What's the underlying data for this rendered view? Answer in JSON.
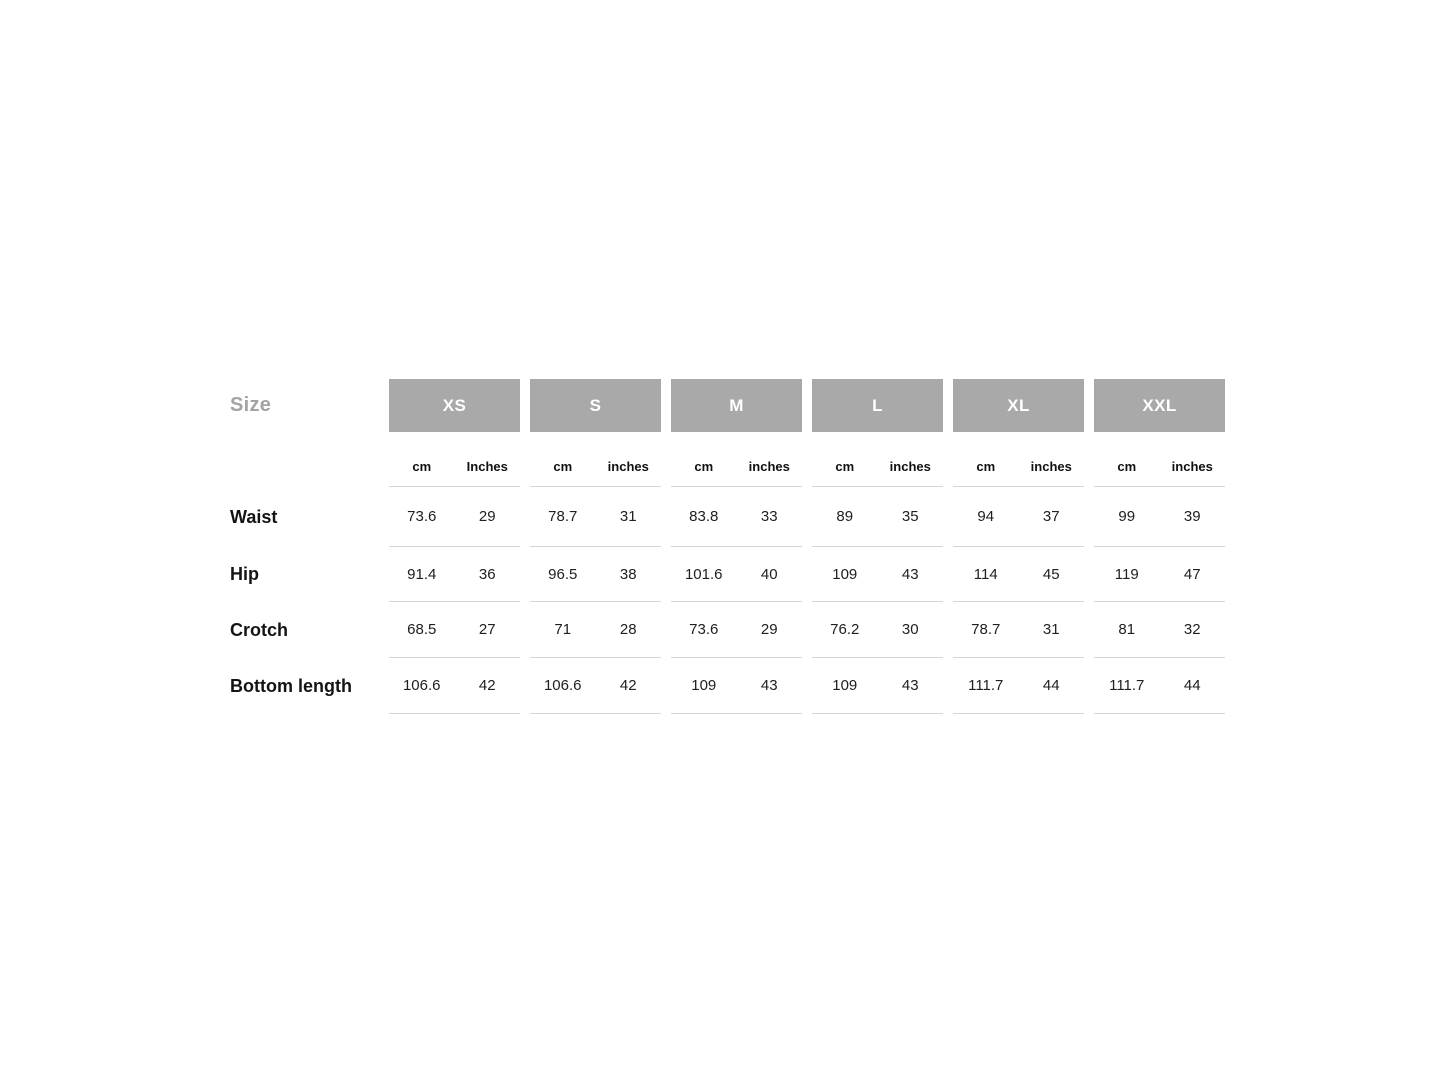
{
  "page": {
    "background": "#ffffff"
  },
  "size_chart": {
    "corner_label": "Size",
    "columns": [
      {
        "size": "XS",
        "units": [
          "cm",
          "Inches"
        ]
      },
      {
        "size": "S",
        "units": [
          "cm",
          "inches"
        ]
      },
      {
        "size": "M",
        "units": [
          "cm",
          "inches"
        ]
      },
      {
        "size": "L",
        "units": [
          "cm",
          "inches"
        ]
      },
      {
        "size": "XL",
        "units": [
          "cm",
          "inches"
        ]
      },
      {
        "size": "XXL",
        "units": [
          "cm",
          "inches"
        ]
      }
    ],
    "rows": [
      {
        "label": "Waist",
        "values": [
          [
            "73.6",
            "29"
          ],
          [
            "78.7",
            "31"
          ],
          [
            "83.8",
            "33"
          ],
          [
            "89",
            "35"
          ],
          [
            "94",
            "37"
          ],
          [
            "99",
            "39"
          ]
        ]
      },
      {
        "label": "Hip",
        "values": [
          [
            "91.4",
            "36"
          ],
          [
            "96.5",
            "38"
          ],
          [
            "101.6",
            "40"
          ],
          [
            "109",
            "43"
          ],
          [
            "114",
            "45"
          ],
          [
            "119",
            "47"
          ]
        ]
      },
      {
        "label": "Crotch",
        "values": [
          [
            "68.5",
            "27"
          ],
          [
            "71",
            "28"
          ],
          [
            "73.6",
            "29"
          ],
          [
            "76.2",
            "30"
          ],
          [
            "78.7",
            "31"
          ],
          [
            "81",
            "32"
          ]
        ]
      },
      {
        "label": "Bottom length",
        "values": [
          [
            "106.6",
            "42"
          ],
          [
            "106.6",
            "42"
          ],
          [
            "109",
            "43"
          ],
          [
            "109",
            "43"
          ],
          [
            "111.7",
            "44"
          ],
          [
            "111.7",
            "44"
          ]
        ]
      }
    ],
    "colors": {
      "header_bg": "#a9a9a9",
      "header_text": "#ffffff",
      "corner_label_text": "#a3a3a3",
      "row_label_text": "#141414",
      "value_text": "#202020",
      "divider": "#d5d5d5"
    }
  },
  "chart_data": {
    "type": "table",
    "title": "Size",
    "sizes": [
      "XS",
      "S",
      "M",
      "L",
      "XL",
      "XXL"
    ],
    "units": [
      "cm",
      "inches"
    ],
    "row_headers": [
      "Waist",
      "Hip",
      "Crotch",
      "Bottom length"
    ],
    "rows": [
      {
        "label": "Waist",
        "cm": [
          73.6,
          78.7,
          83.8,
          89,
          94,
          99
        ],
        "inches": [
          29,
          31,
          33,
          35,
          37,
          39
        ]
      },
      {
        "label": "Hip",
        "cm": [
          91.4,
          96.5,
          101.6,
          109,
          114,
          119
        ],
        "inches": [
          36,
          38,
          40,
          43,
          45,
          47
        ]
      },
      {
        "label": "Crotch",
        "cm": [
          68.5,
          71,
          73.6,
          76.2,
          78.7,
          81
        ],
        "inches": [
          27,
          28,
          29,
          30,
          31,
          32
        ]
      },
      {
        "label": "Bottom length",
        "cm": [
          106.6,
          106.6,
          109,
          109,
          111.7,
          111.7
        ],
        "inches": [
          42,
          42,
          43,
          43,
          44,
          44
        ]
      }
    ],
    "layout": "column groups per size, each split into cm and inches sub-columns; light gray dividers under each size column group"
  }
}
